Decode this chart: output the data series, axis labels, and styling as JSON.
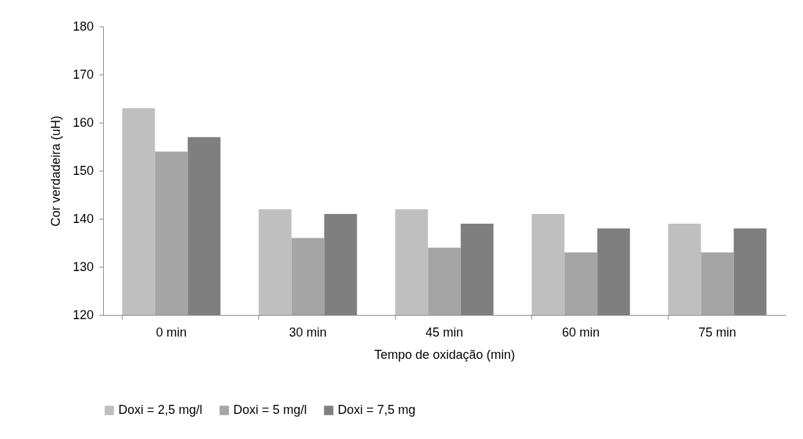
{
  "chart_data": {
    "type": "bar",
    "xlabel": "Tempo de oxidação (min)",
    "ylabel": "Cor verdadeira (uH)",
    "categories": [
      "0 min",
      "30 min",
      "45 min",
      "60 min",
      "75 min"
    ],
    "series": [
      {
        "name": "Doxi = 2,5 mg/l",
        "color": "#bfbfbf",
        "values": [
          163,
          142,
          142,
          141,
          139
        ]
      },
      {
        "name": "Doxi = 5 mg/l",
        "color": "#a5a5a5",
        "values": [
          154,
          136,
          134,
          133,
          133
        ]
      },
      {
        "name": "Doxi = 7,5 mg",
        "color": "#7f7f7f",
        "values": [
          157,
          141,
          139,
          138,
          138
        ]
      }
    ],
    "ylim": [
      120,
      180
    ],
    "yticks": [
      120,
      130,
      140,
      150,
      160,
      170,
      180
    ],
    "grid": false,
    "legend": "bottom"
  }
}
